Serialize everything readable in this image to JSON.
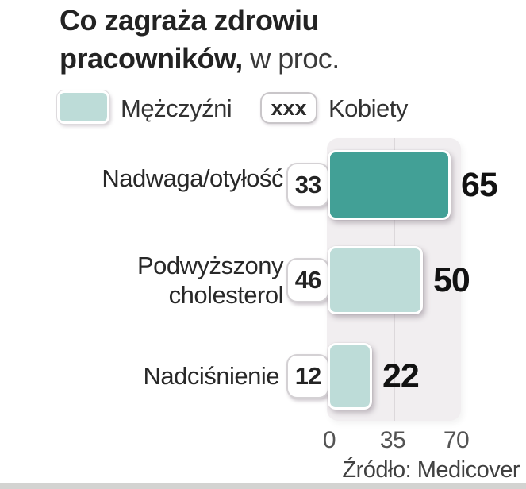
{
  "title": {
    "line1": "Co zagraża zdrowiu",
    "line2_bold": "pracowników,",
    "line2_plain": " w proc."
  },
  "legend": {
    "men_label": "Mężczyźni",
    "women_label": "Kobiety",
    "women_swatch_text": "xxx"
  },
  "rows": [
    {
      "label": "Nadwaga/otyłość",
      "women": "33",
      "men": "65",
      "highlight": true
    },
    {
      "label": "Podwyższony\ncholesterol",
      "women": "46",
      "men": "50",
      "highlight": false
    },
    {
      "label": "Nadciśnienie",
      "women": "12",
      "men": "22",
      "highlight": false
    }
  ],
  "axis": {
    "ticks": [
      "0",
      "35",
      "70"
    ]
  },
  "source": "Źródło: Medicover",
  "chart_data": {
    "type": "bar",
    "orientation": "horizontal",
    "title": "Co zagraża zdrowiu pracowników, w proc.",
    "categories": [
      "Nadwaga/otyłość",
      "Podwyższony cholesterol",
      "Nadciśnienie"
    ],
    "series": [
      {
        "name": "Mężczyźni",
        "values": [
          65,
          50,
          22
        ],
        "style": "filled bars"
      },
      {
        "name": "Kobiety",
        "values": [
          33,
          46,
          12
        ],
        "style": "boxed numbers"
      }
    ],
    "x_ticks": [
      0,
      35,
      70
    ],
    "xlim": [
      0,
      70
    ],
    "grid": "single vertical line at 35",
    "legend_position": "top",
    "source": "Źródło: Medicover",
    "colors": {
      "men_bar_highlight": "#42a096",
      "men_bar": "#bddcd8",
      "panel": "#f1eef0",
      "gridline": "#dcd8db",
      "text": "#232323"
    }
  }
}
